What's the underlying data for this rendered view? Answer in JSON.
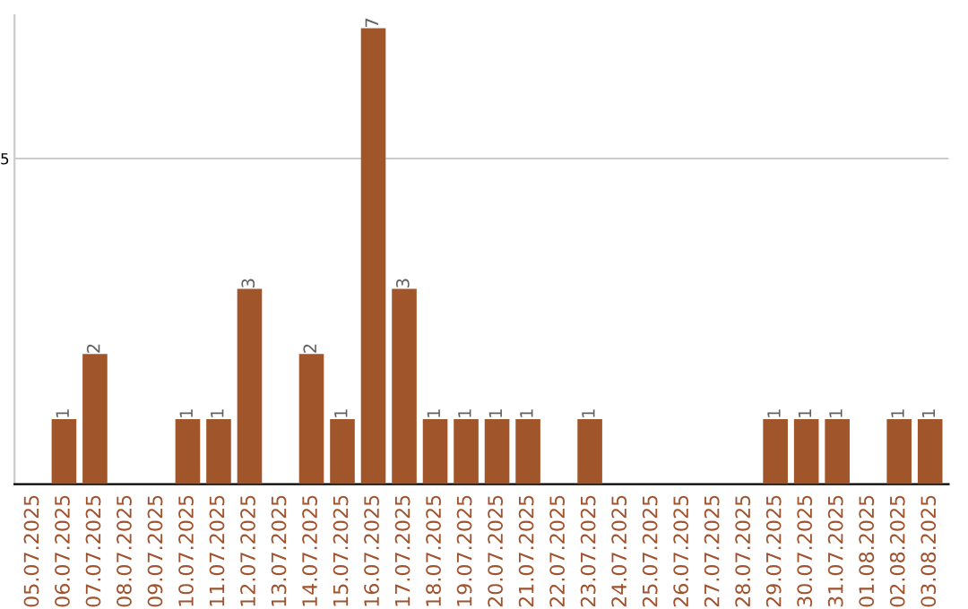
{
  "chart_data": {
    "type": "bar",
    "categories": [
      "05.07.2025",
      "06.07.2025",
      "07.07.2025",
      "08.07.2025",
      "09.07.2025",
      "10.07.2025",
      "11.07.2025",
      "12.07.2025",
      "13.07.2025",
      "14.07.2025",
      "15.07.2025",
      "16.07.2025",
      "17.07.2025",
      "18.07.2025",
      "19.07.2025",
      "20.07.2025",
      "21.07.2025",
      "22.07.2025",
      "23.07.2025",
      "24.07.2025",
      "25.07.2025",
      "26.07.2025",
      "27.07.2025",
      "28.07.2025",
      "29.07.2025",
      "30.07.2025",
      "31.07.2025",
      "01.08.2025",
      "02.08.2025",
      "03.08.2025"
    ],
    "values": [
      0,
      1,
      2,
      0,
      0,
      1,
      1,
      3,
      0,
      2,
      1,
      7,
      3,
      1,
      1,
      1,
      1,
      0,
      1,
      0,
      0,
      0,
      0,
      0,
      1,
      1,
      1,
      0,
      1,
      1
    ],
    "value_labels": [
      null,
      "1",
      "2",
      null,
      null,
      "1",
      "1",
      "3",
      null,
      "2",
      "1",
      "7",
      "3",
      "1",
      "1",
      "1",
      "1",
      null,
      "1",
      null,
      null,
      null,
      null,
      null,
      "1",
      "1",
      "1",
      null,
      "1",
      "1"
    ],
    "color": "#a0562a",
    "ylim": [
      0,
      7.2
    ],
    "yticks": [
      5
    ],
    "grid": "y"
  }
}
